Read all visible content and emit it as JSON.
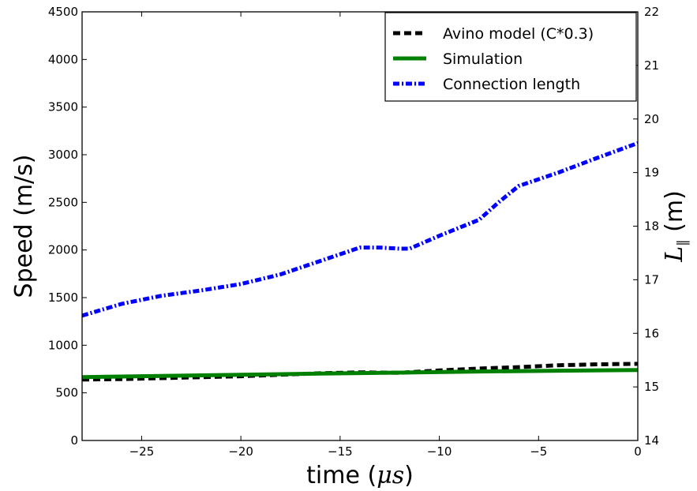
{
  "chart_data": {
    "type": "line",
    "title": "",
    "xlabel": "time (μs)",
    "xlabel_prefix": "time (",
    "xlabel_mu": "μ",
    "xlabel_s": "s",
    "xlabel_suffix": ")",
    "ylabel": "Speed (m/s)",
    "ylabel_right": "L∥ (m)",
    "ylabel_right_main": "L",
    "ylabel_right_sub": "∥",
    "ylabel_right_unit": " (m)",
    "xlim": [
      -28,
      0
    ],
    "ylim": [
      0,
      4500
    ],
    "ylim_right": [
      14,
      22
    ],
    "xticks": [
      -25,
      -20,
      -15,
      -10,
      -5,
      0
    ],
    "xtick_labels": [
      "−25",
      "−20",
      "−15",
      "−10",
      "−5",
      "0"
    ],
    "yticks": [
      0,
      500,
      1000,
      1500,
      2000,
      2500,
      3000,
      3500,
      4000,
      4500
    ],
    "ytick_labels": [
      "0",
      "500",
      "1000",
      "1500",
      "2000",
      "2500",
      "3000",
      "3500",
      "4000",
      "4500"
    ],
    "yticks_right": [
      14,
      15,
      16,
      17,
      18,
      19,
      20,
      21,
      22
    ],
    "ytick_right_labels": [
      "14",
      "15",
      "16",
      "17",
      "18",
      "19",
      "20",
      "21",
      "22"
    ],
    "grid": false,
    "legend_position": "top-right",
    "series": [
      {
        "name": "Avino model (C*0.3)",
        "axis": "left",
        "color": "#000000",
        "style": "dashed",
        "x": [
          -28,
          -26,
          -24,
          -22,
          -20,
          -18,
          -16,
          -14,
          -12,
          -10,
          -8,
          -6,
          -4,
          -2,
          0
        ],
        "y": [
          640,
          645,
          655,
          665,
          675,
          690,
          705,
          715,
          710,
          735,
          755,
          770,
          790,
          800,
          805
        ]
      },
      {
        "name": "Simulation",
        "axis": "left",
        "color": "#008000",
        "style": "solid",
        "x": [
          -28,
          -24,
          -20,
          -16,
          -12,
          -8,
          -4,
          0
        ],
        "y": [
          665,
          678,
          690,
          702,
          713,
          724,
          733,
          740
        ]
      },
      {
        "name": "Connection length",
        "axis": "right",
        "color": "#0000ff",
        "style": "dashdot",
        "x": [
          -28,
          -26,
          -24,
          -22,
          -20,
          -18,
          -16,
          -14,
          -13,
          -12,
          -11.5,
          -10,
          -8,
          -7,
          -6,
          -4,
          -2,
          0
        ],
        "y": [
          16.33,
          16.55,
          16.7,
          16.8,
          16.92,
          17.1,
          17.35,
          17.6,
          17.6,
          17.58,
          17.58,
          17.82,
          18.12,
          18.45,
          18.75,
          19.0,
          19.28,
          19.55
        ]
      }
    ]
  }
}
